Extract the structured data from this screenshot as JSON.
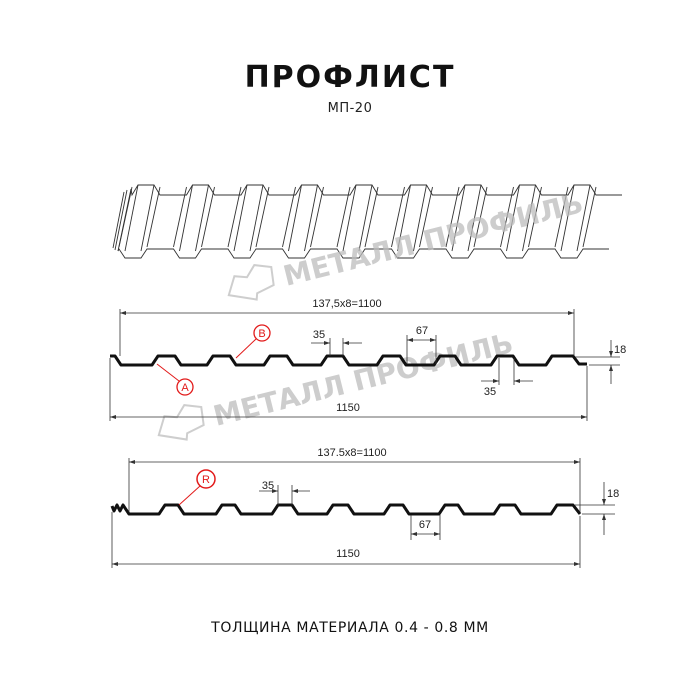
{
  "header": {
    "title": "ПРОФЛИСТ",
    "subtitle": "МП-20"
  },
  "watermark": {
    "text": "МЕТАЛЛ ПРОФИЛЬ",
    "color": "#bdbdbd"
  },
  "profile_a": {
    "pitch_label": "137,5x8=1100",
    "width_label": "1150",
    "top_flat_label": "35",
    "rib_label": "67",
    "bottom_flat_label": "35",
    "height_label": "18",
    "marker_a": "A",
    "marker_b": "B"
  },
  "profile_b": {
    "pitch_label": "137.5x8=1100",
    "width_label": "1150",
    "top_flat_label": "35",
    "rib_label": "67",
    "height_label": "18",
    "marker_r": "R"
  },
  "footer": {
    "thickness": "ТОЛЩИНА МАТЕРИАЛА 0.4 - 0.8 ММ"
  },
  "colors": {
    "profile": "#111111",
    "marker": "#e21a1a"
  }
}
